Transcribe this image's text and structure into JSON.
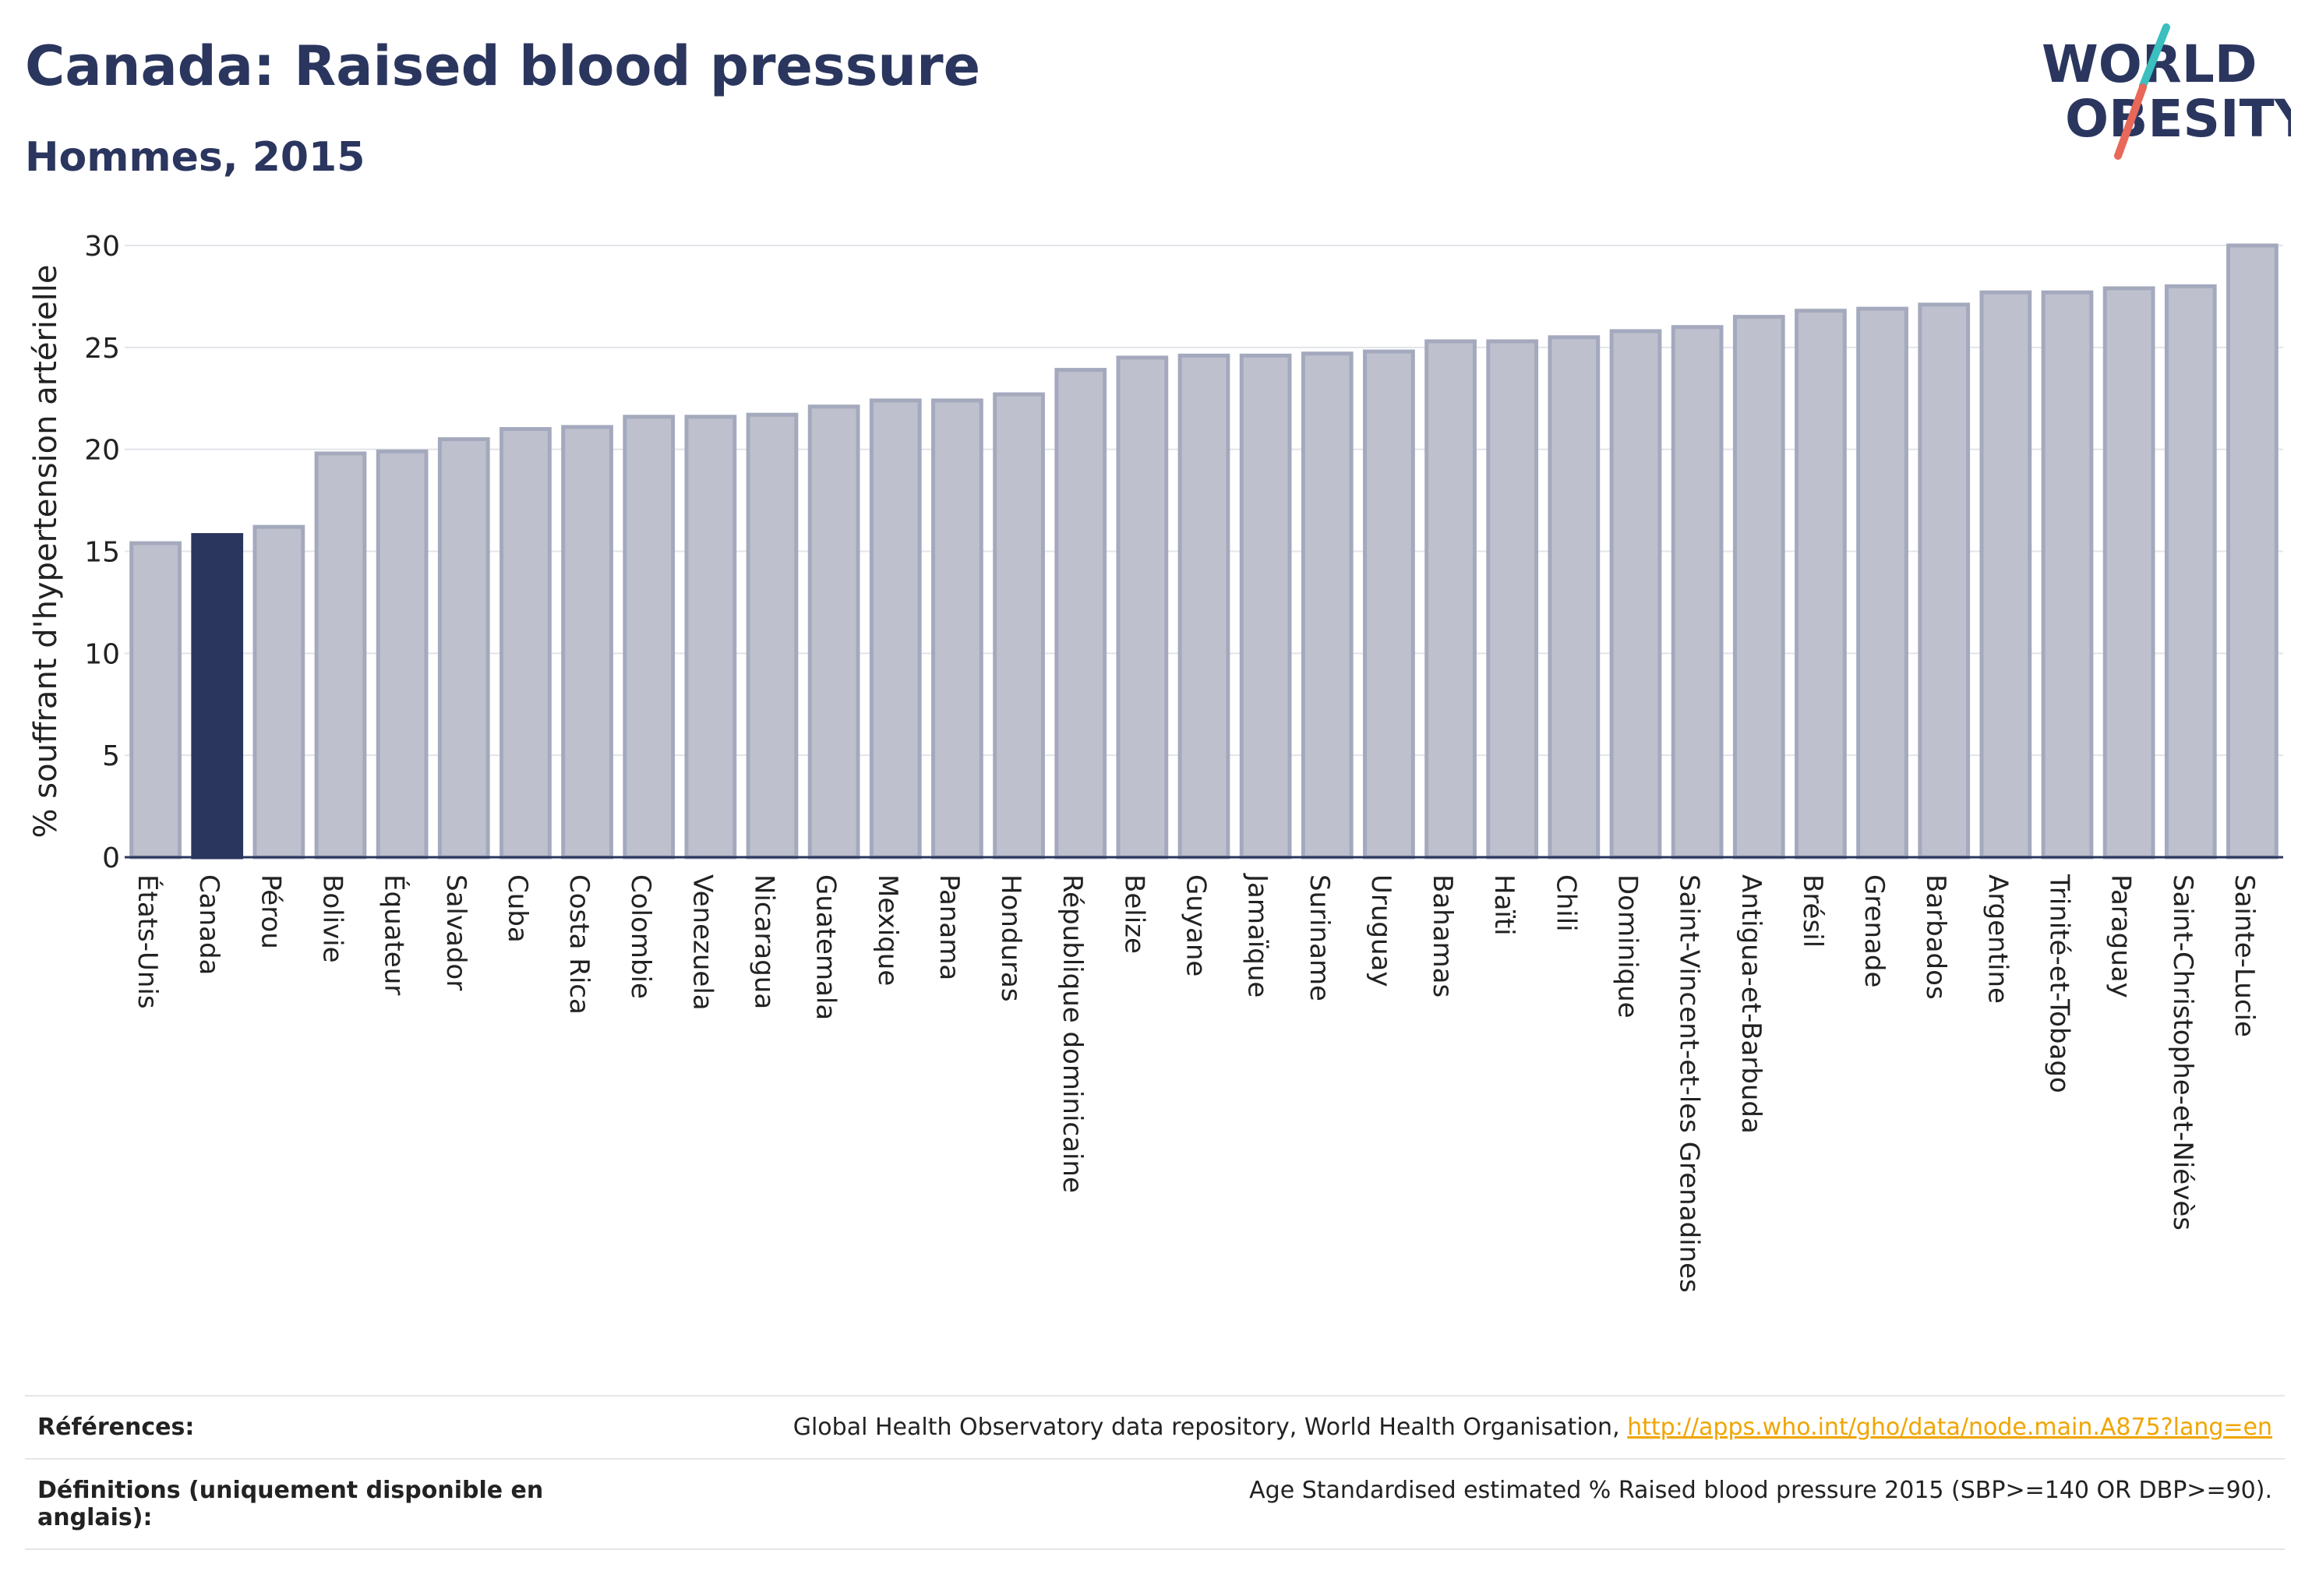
{
  "header": {
    "title": "Canada: Raised blood pressure",
    "subtitle": "Hommes, 2015"
  },
  "logo": {
    "line1": "WORLD",
    "line2": "OBESITY",
    "accent_teal": "#3bbfbf",
    "accent_red": "#e8685a"
  },
  "colors": {
    "highlight": "#2b365f",
    "bar": "#bec1cd",
    "bar_border": "#a4a9bd",
    "text": "#2b365f"
  },
  "chart_data": {
    "type": "bar",
    "ylabel": "% souffrant d'hypertension artérielle",
    "ylim": [
      0,
      30
    ],
    "yticks": [
      0,
      5,
      10,
      15,
      20,
      25,
      30
    ],
    "grid": true,
    "highlight": "Canada",
    "categories": [
      "États-Unis",
      "Canada",
      "Pérou",
      "Bolivie",
      "Équateur",
      "Salvador",
      "Cuba",
      "Costa Rica",
      "Colombie",
      "Venezuela",
      "Nicaragua",
      "Guatemala",
      "Mexique",
      "Panama",
      "Honduras",
      "République dominicaine",
      "Belize",
      "Guyane",
      "Jamaïque",
      "Suriname",
      "Uruguay",
      "Bahamas",
      "Haïti",
      "Chili",
      "Dominique",
      "Saint-Vincent-et-les Grenadines",
      "Antigua-et-Barbuda",
      "Brésil",
      "Grenade",
      "Barbados",
      "Argentine",
      "Trinité-et-Tobago",
      "Paraguay",
      "Saint-Christophe-et-Niévès",
      "Sainte-Lucie"
    ],
    "values": [
      15.4,
      15.8,
      16.2,
      19.8,
      19.9,
      20.5,
      21.0,
      21.1,
      21.6,
      21.6,
      21.7,
      22.1,
      22.4,
      22.4,
      22.7,
      23.9,
      24.5,
      24.6,
      24.6,
      24.7,
      24.8,
      25.3,
      25.3,
      25.5,
      25.8,
      26.0,
      26.5,
      26.8,
      26.9,
      27.1,
      27.7,
      27.7,
      27.9,
      28.0,
      30.0
    ]
  },
  "references": {
    "label": "Références:",
    "text": "Global Health Observatory data repository, World Health Organisation, ",
    "link": "http://apps.who.int/gho/data/node.main.A875?lang=en"
  },
  "definitions": {
    "label": "Définitions (uniquement disponible en anglais):",
    "text": "Age Standardised estimated % Raised blood pressure 2015 (SBP>=140 OR DBP>=90)."
  }
}
